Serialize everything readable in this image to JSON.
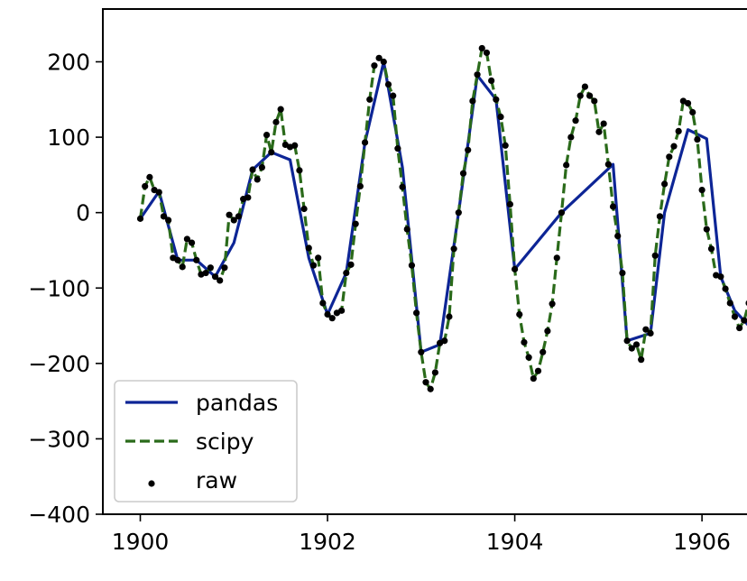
{
  "chart_data": {
    "type": "line",
    "title": "",
    "xlabel": "",
    "ylabel": "",
    "xlim": [
      1899.6,
      1906.5
    ],
    "ylim": [
      -400,
      270
    ],
    "x_ticks": [
      {
        "value": 1900,
        "label": "1900"
      },
      {
        "value": 1902,
        "label": "1902"
      },
      {
        "value": 1904,
        "label": "1904"
      },
      {
        "value": 1906,
        "label": "1906"
      }
    ],
    "y_ticks": [
      {
        "value": 200,
        "label": "200"
      },
      {
        "value": 100,
        "label": "100"
      },
      {
        "value": 0,
        "label": "0"
      },
      {
        "value": -100,
        "label": "−100"
      },
      {
        "value": -200,
        "label": "−200"
      },
      {
        "value": -300,
        "label": "−300"
      },
      {
        "value": -400,
        "label": "−400"
      }
    ],
    "grid": false,
    "legend": {
      "placement": "lower-left"
    },
    "series": [
      {
        "name": "pandas",
        "style": "solid",
        "color": "#0d2596",
        "x": [
          1900.0,
          1900.2,
          1900.4,
          1900.6,
          1900.8,
          1901.0,
          1901.2,
          1901.4,
          1901.6,
          1901.8,
          1902.0,
          1902.2,
          1902.4,
          1902.6,
          1902.8,
          1903.0,
          1903.2,
          1903.4,
          1903.6,
          1903.8,
          1904.0,
          1904.5,
          1905.05,
          1905.2,
          1905.45,
          1905.6,
          1905.85,
          1906.05,
          1906.2,
          1906.35,
          1906.5
        ],
        "y": [
          -8,
          28,
          -63,
          -63,
          -85,
          -40,
          57,
          80,
          70,
          -60,
          -135,
          -80,
          93,
          200,
          60,
          -185,
          -175,
          0,
          182,
          150,
          -75,
          0,
          64,
          -170,
          -160,
          0,
          110,
          98,
          -85,
          -130,
          -150
        ]
      },
      {
        "name": "scipy",
        "style": "dashed",
        "color": "#2a6a1a",
        "x": [
          1900.0,
          1900.05,
          1900.1,
          1900.15,
          1900.2,
          1900.25,
          1900.3,
          1900.35,
          1900.4,
          1900.45,
          1900.5,
          1900.55,
          1900.6,
          1900.65,
          1900.7,
          1900.75,
          1900.8,
          1900.85,
          1900.9,
          1900.95,
          1901.0,
          1901.05,
          1901.1,
          1901.15,
          1901.2,
          1901.25,
          1901.3,
          1901.35,
          1901.4,
          1901.45,
          1901.5,
          1901.55,
          1901.6,
          1901.65,
          1901.7,
          1901.75,
          1901.8,
          1901.85,
          1901.9,
          1901.95,
          1902.0,
          1902.05,
          1902.1,
          1902.15,
          1902.2,
          1902.25,
          1902.3,
          1902.35,
          1902.4,
          1902.45,
          1902.5,
          1902.55,
          1902.6,
          1902.65,
          1902.7,
          1902.75,
          1902.8,
          1902.85,
          1902.9,
          1902.95,
          1903.0,
          1903.05,
          1903.1,
          1903.15,
          1903.2,
          1903.25,
          1903.3,
          1903.35,
          1903.4,
          1903.45,
          1903.5,
          1903.55,
          1903.6,
          1903.65,
          1903.7,
          1903.75,
          1903.8,
          1903.85,
          1903.9,
          1903.95,
          1904.0,
          1904.05,
          1904.1,
          1904.15,
          1904.2,
          1904.25,
          1904.3,
          1904.35,
          1904.4,
          1904.45,
          1904.5,
          1904.55,
          1904.6,
          1904.65,
          1904.7,
          1904.75,
          1904.8,
          1904.85,
          1904.9,
          1904.95,
          1905.0,
          1905.05,
          1905.1,
          1905.15,
          1905.2,
          1905.25,
          1905.3,
          1905.35,
          1905.4,
          1905.45,
          1905.5,
          1905.55,
          1905.6,
          1905.65,
          1905.7,
          1905.75,
          1905.8,
          1905.85,
          1905.9,
          1905.95,
          1906.0,
          1906.05,
          1906.1,
          1906.15,
          1906.2,
          1906.25,
          1906.3,
          1906.35,
          1906.4,
          1906.45,
          1906.5
        ],
        "y": [
          -8,
          35,
          47,
          30,
          27,
          -5,
          -10,
          -60,
          -63,
          -72,
          -35,
          -40,
          -63,
          -82,
          -80,
          -73,
          -85,
          -90,
          -73,
          -3,
          -10,
          -5,
          18,
          20,
          57,
          44,
          60,
          103,
          80,
          120,
          137,
          90,
          87,
          89,
          56,
          5,
          -47,
          -70,
          -60,
          -120,
          -135,
          -140,
          -133,
          -130,
          -80,
          -69,
          -15,
          35,
          93,
          150,
          195,
          205,
          200,
          170,
          155,
          85,
          34,
          -22,
          -70,
          -133,
          -185,
          -225,
          -234,
          -212,
          -173,
          -170,
          -138,
          -48,
          0,
          52,
          83,
          148,
          183,
          218,
          212,
          175,
          150,
          127,
          89,
          11,
          -75,
          -135,
          -172,
          -192,
          -220,
          -210,
          -185,
          -157,
          -121,
          -60,
          0,
          63,
          100,
          122,
          155,
          167,
          155,
          148,
          107,
          118,
          64,
          8,
          -31,
          -80,
          -170,
          -180,
          -175,
          -195,
          -155,
          -160,
          -57,
          -5,
          38,
          74,
          88,
          108,
          148,
          145,
          133,
          97,
          30,
          -22,
          -48,
          -83,
          -85,
          -101,
          -120,
          -138,
          -153,
          -143,
          -120
        ]
      }
    ],
    "scatter": {
      "name": "raw",
      "color": "#000000",
      "x": [
        1900.0,
        1900.05,
        1900.1,
        1900.15,
        1900.2,
        1900.25,
        1900.3,
        1900.35,
        1900.4,
        1900.45,
        1900.5,
        1900.55,
        1900.6,
        1900.65,
        1900.7,
        1900.75,
        1900.8,
        1900.85,
        1900.9,
        1900.95,
        1901.0,
        1901.05,
        1901.1,
        1901.15,
        1901.2,
        1901.25,
        1901.3,
        1901.35,
        1901.4,
        1901.45,
        1901.5,
        1901.55,
        1901.6,
        1901.65,
        1901.7,
        1901.75,
        1901.8,
        1901.85,
        1901.9,
        1901.95,
        1902.0,
        1902.05,
        1902.1,
        1902.15,
        1902.2,
        1902.25,
        1902.3,
        1902.35,
        1902.4,
        1902.45,
        1902.5,
        1902.55,
        1902.6,
        1902.65,
        1902.7,
        1902.75,
        1902.8,
        1902.85,
        1902.9,
        1902.95,
        1903.0,
        1903.05,
        1903.1,
        1903.15,
        1903.2,
        1903.25,
        1903.3,
        1903.35,
        1903.4,
        1903.45,
        1903.5,
        1903.55,
        1903.6,
        1903.65,
        1903.7,
        1903.75,
        1903.8,
        1903.85,
        1903.9,
        1903.95,
        1904.0,
        1904.05,
        1904.1,
        1904.15,
        1904.2,
        1904.25,
        1904.3,
        1904.35,
        1904.4,
        1904.45,
        1904.5,
        1904.55,
        1904.6,
        1904.65,
        1904.7,
        1904.75,
        1904.8,
        1904.85,
        1904.9,
        1904.95,
        1905.0,
        1905.05,
        1905.1,
        1905.15,
        1905.2,
        1905.25,
        1905.3,
        1905.35,
        1905.4,
        1905.45,
        1905.5,
        1905.55,
        1905.6,
        1905.65,
        1905.7,
        1905.75,
        1905.8,
        1905.85,
        1905.9,
        1905.95,
        1906.0,
        1906.05,
        1906.1,
        1906.15,
        1906.2,
        1906.25,
        1906.3,
        1906.35,
        1906.4,
        1906.45,
        1906.5
      ],
      "y": [
        -8,
        35,
        47,
        30,
        27,
        -5,
        -10,
        -60,
        -63,
        -72,
        -35,
        -40,
        -63,
        -82,
        -80,
        -73,
        -85,
        -90,
        -73,
        -3,
        -10,
        -5,
        18,
        20,
        57,
        44,
        60,
        103,
        80,
        120,
        137,
        90,
        87,
        89,
        56,
        5,
        -47,
        -70,
        -60,
        -120,
        -135,
        -140,
        -133,
        -130,
        -80,
        -69,
        -15,
        35,
        93,
        150,
        195,
        205,
        200,
        170,
        155,
        85,
        34,
        -22,
        -70,
        -133,
        -185,
        -225,
        -234,
        -212,
        -173,
        -170,
        -138,
        -48,
        0,
        52,
        83,
        148,
        183,
        218,
        212,
        175,
        150,
        127,
        89,
        11,
        -75,
        -135,
        -172,
        -192,
        -220,
        -210,
        -185,
        -157,
        -121,
        -60,
        0,
        63,
        100,
        122,
        155,
        167,
        155,
        148,
        107,
        118,
        64,
        8,
        -31,
        -80,
        -170,
        -180,
        -175,
        -195,
        -155,
        -160,
        -57,
        -5,
        38,
        74,
        88,
        108,
        148,
        145,
        133,
        97,
        30,
        -22,
        -48,
        -83,
        -85,
        -101,
        -120,
        -138,
        -153,
        -143,
        -120
      ]
    }
  }
}
